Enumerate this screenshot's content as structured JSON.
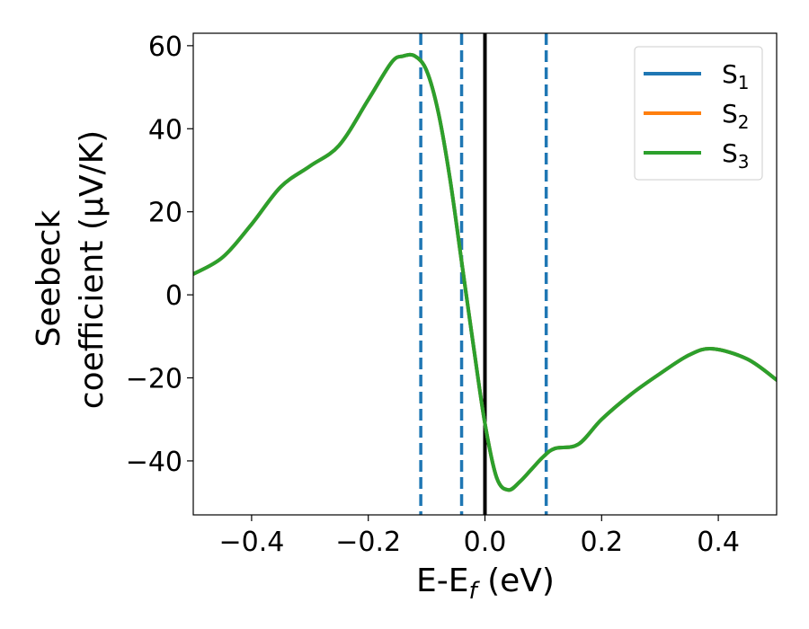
{
  "chart_data": {
    "type": "line",
    "title": "",
    "xlabel": "E-E",
    "xlabel_sub": "f",
    "xlabel_unit": " (eV)",
    "ylabel_line1": "Seebeck",
    "ylabel_line2": "coefficient  (μV/K)",
    "xlim": [
      -0.5,
      0.5
    ],
    "ylim": [
      -53,
      63
    ],
    "xticks": [
      -0.4,
      -0.2,
      0.0,
      0.2,
      0.4
    ],
    "xtick_labels": [
      "−0.4",
      "−0.2",
      "0.0",
      "0.2",
      "0.4"
    ],
    "yticks": [
      -40,
      -20,
      0,
      20,
      40,
      60
    ],
    "ytick_labels": [
      "−40",
      "−20",
      "0",
      "20",
      "40",
      "60"
    ],
    "grid": false,
    "legend_position": "top-right",
    "series": [
      {
        "name": "S",
        "name_sub": "1",
        "color": "#1f77b4",
        "x": [
          -0.5,
          -0.45,
          -0.4,
          -0.35,
          -0.3,
          -0.25,
          -0.2,
          -0.16,
          -0.14,
          -0.12,
          -0.1,
          -0.08,
          -0.06,
          -0.04,
          -0.02,
          0.0,
          0.02,
          0.04,
          0.06,
          0.08,
          0.1,
          0.12,
          0.16,
          0.2,
          0.25,
          0.3,
          0.35,
          0.39,
          0.45,
          0.5
        ],
        "y": [
          5,
          9,
          17,
          26,
          31,
          36,
          47,
          56,
          57.5,
          57.5,
          54,
          44,
          28,
          8,
          -12,
          -31,
          -44,
          -47,
          -45,
          -42,
          -39,
          -37,
          -36,
          -30,
          -24,
          -19,
          -14.5,
          -13,
          -15.5,
          -20.5
        ]
      },
      {
        "name": "S",
        "name_sub": "2",
        "color": "#ff7f0e",
        "x": [
          -0.5,
          -0.45,
          -0.4,
          -0.35,
          -0.3,
          -0.25,
          -0.2,
          -0.16,
          -0.14,
          -0.12,
          -0.1,
          -0.08,
          -0.06,
          -0.04,
          -0.02,
          0.0,
          0.02,
          0.04,
          0.06,
          0.08,
          0.1,
          0.12,
          0.16,
          0.2,
          0.25,
          0.3,
          0.35,
          0.39,
          0.45,
          0.5
        ],
        "y": [
          5,
          9,
          17,
          26,
          31,
          36,
          47,
          56,
          57.5,
          57.5,
          54,
          44,
          28,
          8,
          -12,
          -31,
          -44,
          -47,
          -45,
          -42,
          -39,
          -37,
          -36,
          -30,
          -24,
          -19,
          -14.5,
          -13,
          -15.5,
          -20.5
        ]
      },
      {
        "name": "S",
        "name_sub": "3",
        "color": "#2ca02c",
        "x": [
          -0.5,
          -0.45,
          -0.4,
          -0.35,
          -0.3,
          -0.25,
          -0.2,
          -0.16,
          -0.14,
          -0.12,
          -0.1,
          -0.08,
          -0.06,
          -0.04,
          -0.02,
          0.0,
          0.02,
          0.04,
          0.06,
          0.08,
          0.1,
          0.12,
          0.16,
          0.2,
          0.25,
          0.3,
          0.35,
          0.39,
          0.45,
          0.5
        ],
        "y": [
          5,
          9,
          17,
          26,
          31,
          36,
          47,
          56,
          57.5,
          57.5,
          54,
          44,
          28,
          8,
          -12,
          -31,
          -44,
          -47,
          -45,
          -42,
          -39,
          -37,
          -36,
          -30,
          -24,
          -19,
          -14.5,
          -13,
          -15.5,
          -20.5
        ]
      }
    ],
    "vlines": [
      {
        "x": -0.11,
        "style": "dashed",
        "color": "#1f77b4"
      },
      {
        "x": -0.04,
        "style": "dashed",
        "color": "#1f77b4"
      },
      {
        "x": 0.0,
        "style": "solid",
        "color": "#000000"
      },
      {
        "x": 0.105,
        "style": "dashed",
        "color": "#1f77b4"
      }
    ]
  }
}
